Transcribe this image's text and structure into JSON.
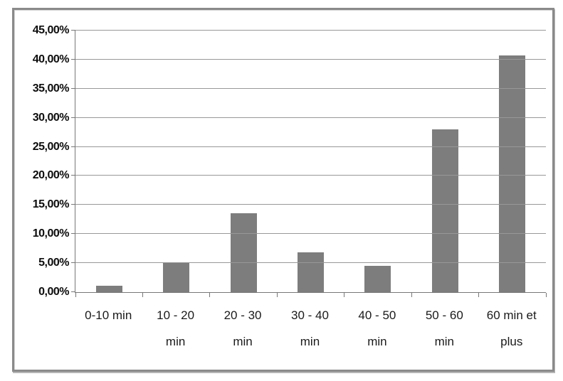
{
  "chart_data": {
    "type": "bar",
    "title": "",
    "categories": [
      "0-10 min",
      "10 - 20 min",
      "20 - 30 min",
      "30 - 40 min",
      "40 - 50 min",
      "50 - 60 min",
      "60 min et plus"
    ],
    "values": [
      1.1,
      5.0,
      13.6,
      6.8,
      4.5,
      28.0,
      40.7
    ],
    "xlabel": "",
    "ylabel": "",
    "ylim": [
      0,
      45
    ],
    "grid": true,
    "legend": "none",
    "y_ticks": [
      {
        "value": 0,
        "label": "0,00%"
      },
      {
        "value": 5,
        "label": "5,00%"
      },
      {
        "value": 10,
        "label": "10,00%"
      },
      {
        "value": 15,
        "label": "15,00%"
      },
      {
        "value": 20,
        "label": "20,00%"
      },
      {
        "value": 25,
        "label": "25,00%"
      },
      {
        "value": 30,
        "label": "30,00%"
      },
      {
        "value": 35,
        "label": "35,00%"
      },
      {
        "value": 40,
        "label": "40,00%"
      },
      {
        "value": 45,
        "label": "45,00%"
      }
    ],
    "colors": {
      "bar": "#7d7d7d",
      "gridline": "#989898",
      "axis": "#777777",
      "text": "#0d0d0d",
      "frame_border": "#8a8a8a",
      "background": "#ffffff"
    }
  }
}
